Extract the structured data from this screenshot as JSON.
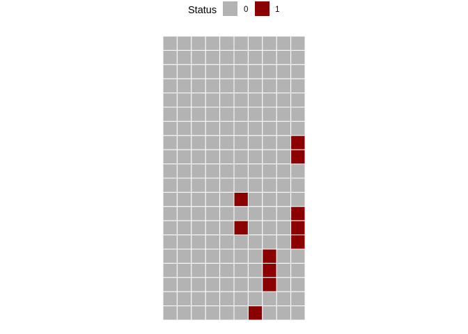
{
  "chart_data": {
    "type": "heatmap",
    "title": "",
    "xlabel": "",
    "ylabel": "",
    "n_rows": 20,
    "n_cols": 10,
    "legend": {
      "title": "Status",
      "position": "top",
      "entries": [
        {
          "label": "0",
          "value": 0,
          "color": "#B3B3B3"
        },
        {
          "label": "1",
          "value": 1,
          "color": "#8B0000"
        }
      ]
    },
    "grid_lines_color": "#FFFFFF",
    "values": [
      [
        0,
        0,
        0,
        0,
        0,
        0,
        0,
        0,
        0,
        0
      ],
      [
        0,
        0,
        0,
        0,
        0,
        0,
        0,
        0,
        0,
        0
      ],
      [
        0,
        0,
        0,
        0,
        0,
        0,
        0,
        0,
        0,
        0
      ],
      [
        0,
        0,
        0,
        0,
        0,
        0,
        0,
        0,
        0,
        0
      ],
      [
        0,
        0,
        0,
        0,
        0,
        0,
        0,
        0,
        0,
        0
      ],
      [
        0,
        0,
        0,
        0,
        0,
        0,
        0,
        0,
        0,
        0
      ],
      [
        0,
        0,
        0,
        0,
        0,
        0,
        0,
        0,
        0,
        0
      ],
      [
        0,
        0,
        0,
        0,
        0,
        0,
        0,
        0,
        0,
        1
      ],
      [
        0,
        0,
        0,
        0,
        0,
        0,
        0,
        0,
        0,
        1
      ],
      [
        0,
        0,
        0,
        0,
        0,
        0,
        0,
        0,
        0,
        0
      ],
      [
        0,
        0,
        0,
        0,
        0,
        0,
        0,
        0,
        0,
        0
      ],
      [
        0,
        0,
        0,
        0,
        0,
        1,
        0,
        0,
        0,
        0
      ],
      [
        0,
        0,
        0,
        0,
        0,
        0,
        0,
        0,
        0,
        1
      ],
      [
        0,
        0,
        0,
        0,
        0,
        1,
        0,
        0,
        0,
        1
      ],
      [
        0,
        0,
        0,
        0,
        0,
        0,
        0,
        0,
        0,
        1
      ],
      [
        0,
        0,
        0,
        0,
        0,
        0,
        0,
        1,
        0,
        0
      ],
      [
        0,
        0,
        0,
        0,
        0,
        0,
        0,
        1,
        0,
        0
      ],
      [
        0,
        0,
        0,
        0,
        0,
        0,
        0,
        1,
        0,
        0
      ],
      [
        0,
        0,
        0,
        0,
        0,
        0,
        0,
        0,
        0,
        0
      ],
      [
        0,
        0,
        0,
        0,
        0,
        0,
        1,
        0,
        0,
        0
      ]
    ]
  }
}
